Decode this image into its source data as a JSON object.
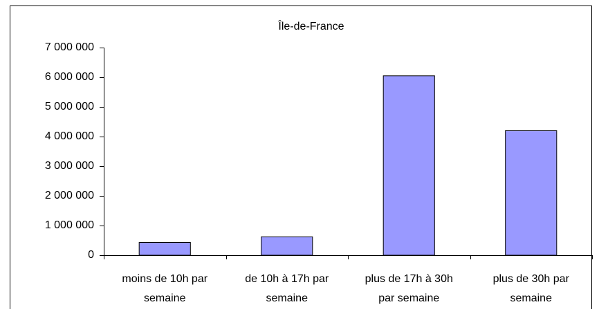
{
  "chart_data": {
    "type": "bar",
    "title": "Île-de-France",
    "categories": [
      "moins de 10h par semaine",
      "de 10h à 17h par semaine",
      "plus de 17h à 30h par semaine",
      "plus de 30h par semaine"
    ],
    "values": [
      430000,
      620000,
      6050000,
      4200000
    ],
    "color": "#9999ff",
    "ylim": [
      0,
      7000000
    ],
    "yticks": [
      0,
      {
        "value": 1000000,
        "label": "1 000 000"
      },
      {
        "value": 2000000,
        "label": "2 000 000"
      },
      {
        "value": 3000000,
        "label": "3 000 000"
      },
      {
        "value": 4000000,
        "label": "4 000 000"
      },
      {
        "value": 5000000,
        "label": "5 000 000"
      },
      {
        "value": 6000000,
        "label": "6 000 000"
      },
      {
        "value": 7000000,
        "label": "7 000 000"
      }
    ],
    "grid": false
  }
}
